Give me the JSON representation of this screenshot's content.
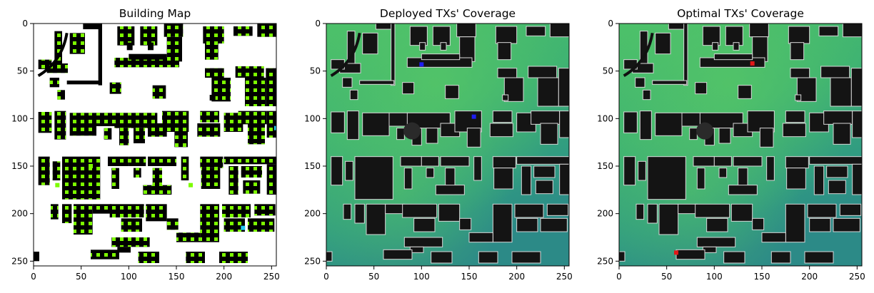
{
  "chart_data": [
    {
      "type": "heatmap",
      "title": "Building Map",
      "xlim": [
        0,
        255
      ],
      "ylim": [
        255,
        0
      ],
      "xticks": [
        0,
        50,
        100,
        150,
        200,
        250
      ],
      "yticks": [
        0,
        50,
        100,
        150,
        200,
        250
      ],
      "grid": false,
      "colors": {
        "background": "#ffffff",
        "building": "#000000",
        "marker": "#7cfc00",
        "highlight": "#22c8f0"
      },
      "markers": [
        {
          "x": 60,
          "y": 150,
          "kind": "marker"
        },
        {
          "x": 25,
          "y": 170,
          "kind": "marker"
        },
        {
          "x": 165,
          "y": 170,
          "kind": "marker"
        },
        {
          "x": 255,
          "y": 110,
          "kind": "highlight"
        },
        {
          "x": 220,
          "y": 215,
          "kind": "highlight"
        }
      ]
    },
    {
      "type": "heatmap",
      "title": "Deployed TXs' Coverage",
      "xlim": [
        0,
        255
      ],
      "ylim": [
        255,
        0
      ],
      "xticks": [
        0,
        50,
        100,
        150,
        200,
        250
      ],
      "yticks": [
        0,
        50,
        100,
        150,
        200,
        250
      ],
      "grid": false,
      "colors": {
        "field_high": "#4cc06a",
        "field_low": "#2c8a87",
        "building": "#141414",
        "tx": "#1e1ef0"
      },
      "transmitters": [
        {
          "x": 100,
          "y": 43
        },
        {
          "x": 155,
          "y": 98
        }
      ]
    },
    {
      "type": "heatmap",
      "title": "Optimal TXs' Coverage",
      "xlim": [
        0,
        255
      ],
      "ylim": [
        255,
        0
      ],
      "xticks": [
        0,
        50,
        100,
        150,
        200,
        250
      ],
      "yticks": [
        0,
        50,
        100,
        150,
        200,
        250
      ],
      "grid": false,
      "colors": {
        "field_high": "#4cc06a",
        "field_low": "#2c8a87",
        "building": "#141414",
        "tx": "#e01818"
      },
      "transmitters": [
        {
          "x": 140,
          "y": 42
        },
        {
          "x": 60,
          "y": 241
        }
      ]
    }
  ]
}
